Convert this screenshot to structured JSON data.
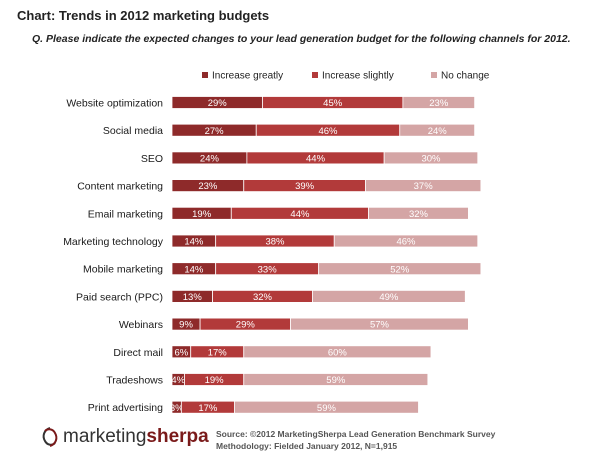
{
  "header": {
    "title": "Chart: Trends in 2012 marketing budgets",
    "question": "Q. Please indicate the expected changes to your lead generation budget for the following channels for 2012."
  },
  "chart_data": {
    "type": "bar",
    "orientation": "horizontal",
    "stacked": true,
    "categories": [
      "Website optimization",
      "Social media",
      "SEO",
      "Content marketing",
      "Email marketing",
      "Marketing technology",
      "Mobile marketing",
      "Paid search (PPC)",
      "Webinars",
      "Direct mail",
      "Tradeshows",
      "Print advertising"
    ],
    "series": [
      {
        "name": "Increase greatly",
        "color": "#8e2a2a",
        "values": [
          29,
          27,
          24,
          23,
          19,
          14,
          14,
          13,
          9,
          6,
          4,
          3
        ]
      },
      {
        "name": "Increase slightly",
        "color": "#b23a3a",
        "values": [
          45,
          46,
          44,
          39,
          44,
          38,
          33,
          32,
          29,
          17,
          19,
          17
        ]
      },
      {
        "name": "No change",
        "color": "#d4a5a5",
        "values": [
          23,
          24,
          30,
          37,
          32,
          46,
          52,
          49,
          57,
          60,
          59,
          59
        ]
      }
    ],
    "value_suffix": "%",
    "legend_position": "top",
    "grid": false
  },
  "footer": {
    "brand_light": "marketing",
    "brand_bold": "sherpa",
    "source": "Source: ©2012 MarketingSherpa Lead Generation Benchmark Survey",
    "methodology": "Methodology: Fielded January 2012, N=1,915"
  }
}
